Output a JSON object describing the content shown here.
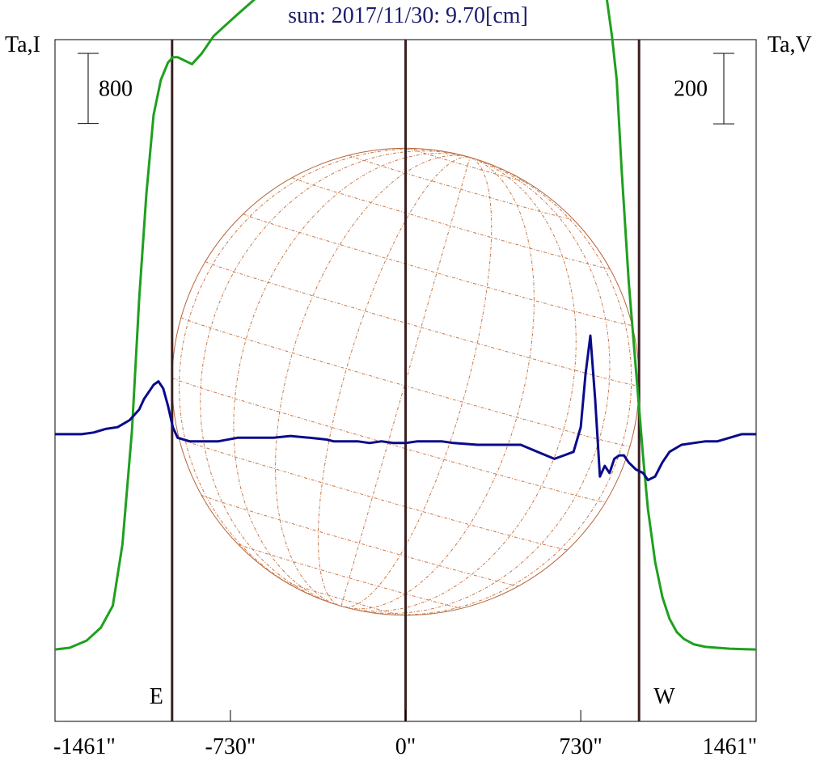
{
  "chart_data": {
    "type": "line",
    "title": "sun: 2017/11/30: 9.70[cm]",
    "left_axis_label": "Ta,I",
    "right_axis_label": "Ta,V",
    "x_ticks": [
      {
        "value": -1461,
        "label": "-1461\""
      },
      {
        "value": -730,
        "label": "-730\""
      },
      {
        "value": 0,
        "label": "0\""
      },
      {
        "value": 730,
        "label": "730\""
      },
      {
        "value": 1461,
        "label": "1461\""
      }
    ],
    "xlim": [
      -1461,
      1461
    ],
    "limb_labels": {
      "east": "E",
      "west": "W"
    },
    "limb_positions": [
      -973,
      0,
      973
    ],
    "solar_radius": 973,
    "scale_bars": [
      {
        "axis": "I",
        "value": 800,
        "label": "800"
      },
      {
        "axis": "V",
        "value": 200,
        "label": "200"
      }
    ],
    "y_ranges": {
      "I": [
        -820,
        6960
      ],
      "V": [
        -815,
        1120
      ]
    },
    "colors": {
      "I": "#1fa01f",
      "V": "#0a0a8c",
      "limb_lines": "#3a1f1f",
      "disk": "#b5643a",
      "grid": "#c9794a",
      "title": "#1c1c6e"
    },
    "series": [
      {
        "key": "I",
        "x": [
          -1461,
          -1400,
          -1330,
          -1270,
          -1220,
          -1180,
          -1140,
          -1110,
          -1080,
          -1050,
          -1020,
          -990,
          -970,
          -950,
          -920,
          -890,
          -850,
          -800,
          -760,
          -700,
          -650,
          -600,
          -560,
          -520,
          -480,
          -430,
          -380,
          -330,
          -300,
          -240,
          -180,
          -120,
          -60,
          -20,
          0,
          30,
          80,
          140,
          200,
          260,
          320,
          380,
          430,
          460,
          500,
          540,
          560,
          600,
          630,
          660,
          680,
          700,
          720,
          740,
          760,
          780,
          800,
          820,
          840,
          860,
          880,
          900,
          930,
          960,
          990,
          1010,
          1040,
          1070,
          1100,
          1130,
          1160,
          1200,
          1250,
          1300,
          1350,
          1400,
          1461
        ],
        "y": [
          0,
          20,
          100,
          250,
          500,
          1200,
          2500,
          4000,
          5200,
          6100,
          6500,
          6700,
          6760,
          6760,
          6720,
          6680,
          6800,
          7000,
          7100,
          7250,
          7370,
          7490,
          7610,
          7750,
          8000,
          8200,
          8210,
          8320,
          8410,
          8520,
          8620,
          8720,
          8810,
          8850,
          8870,
          8900,
          8920,
          8910,
          8890,
          8880,
          8810,
          8690,
          8480,
          8400,
          8500,
          8600,
          8610,
          8550,
          8720,
          9300,
          10400,
          11000,
          10800,
          10000,
          9600,
          9000,
          8500,
          7800,
          7400,
          7000,
          6500,
          5500,
          4200,
          3200,
          2200,
          1600,
          1000,
          600,
          350,
          200,
          120,
          60,
          30,
          20,
          10,
          5,
          0
        ]
      },
      {
        "key": "V",
        "x": [
          -1461,
          -1350,
          -1300,
          -1250,
          -1200,
          -1150,
          -1110,
          -1090,
          -1070,
          -1050,
          -1030,
          -1010,
          -990,
          -970,
          -950,
          -900,
          -850,
          -780,
          -700,
          -620,
          -550,
          -480,
          -400,
          -330,
          -300,
          -250,
          -200,
          -150,
          -100,
          -50,
          0,
          50,
          100,
          150,
          200,
          300,
          400,
          480,
          550,
          620,
          660,
          700,
          730,
          750,
          770,
          790,
          810,
          830,
          850,
          870,
          890,
          910,
          930,
          960,
          990,
          1010,
          1040,
          1070,
          1100,
          1150,
          1200,
          1250,
          1300,
          1350,
          1400,
          1461
        ],
        "y": [
          0,
          0,
          5,
          15,
          20,
          40,
          70,
          100,
          120,
          140,
          150,
          130,
          80,
          20,
          -10,
          -20,
          -20,
          -20,
          -10,
          -10,
          -10,
          -5,
          -10,
          -15,
          -20,
          -20,
          -20,
          -25,
          -20,
          -25,
          -25,
          -20,
          -20,
          -20,
          -25,
          -30,
          -30,
          -30,
          -50,
          -70,
          -60,
          -50,
          20,
          170,
          280,
          100,
          -120,
          -90,
          -110,
          -70,
          -60,
          -60,
          -80,
          -100,
          -110,
          -130,
          -120,
          -80,
          -50,
          -30,
          -25,
          -20,
          -20,
          -10,
          0,
          0
        ]
      }
    ]
  }
}
